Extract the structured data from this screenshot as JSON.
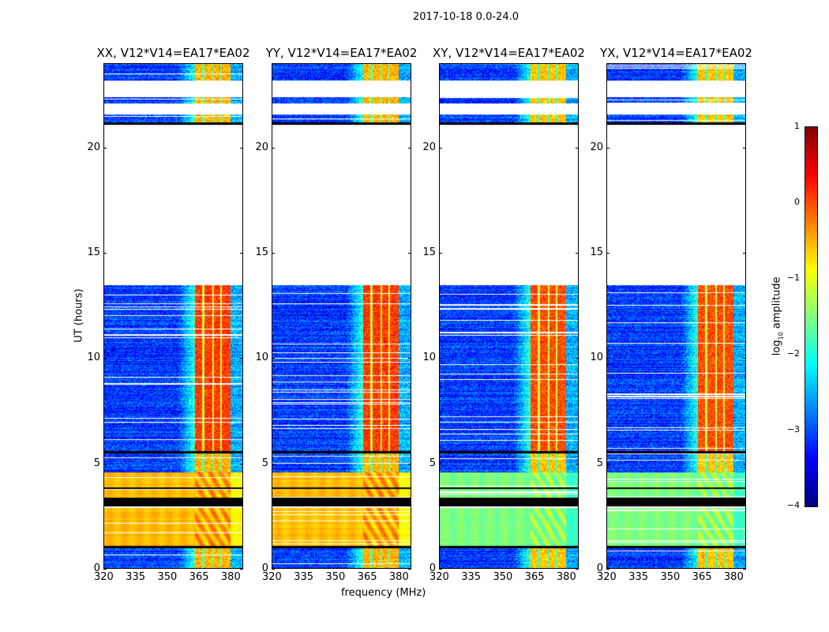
{
  "figure_title": "2017-10-18 0.0-24.0",
  "chart_data": {
    "type": "heatmap",
    "xlabel": "frequency (MHz)",
    "ylabel": "UT (hours)",
    "xlim": [
      320,
      386
    ],
    "ylim": [
      0,
      24
    ],
    "xticks": [
      "320",
      "335",
      "350",
      "365",
      "380"
    ],
    "xtick_values": [
      320,
      335,
      350,
      365,
      380
    ],
    "yticks": [
      "0",
      "5",
      "10",
      "15",
      "20"
    ],
    "ytick_values": [
      0,
      5,
      10,
      15,
      20
    ],
    "panels": [
      {
        "title": "XX, V12*V14=EA17*EA02",
        "bright_level": -0.55
      },
      {
        "title": "YY, V12*V14=EA17*EA02",
        "bright_level": -0.55
      },
      {
        "title": "XY, V12*V14=EA17*EA02",
        "bright_level": -1.5
      },
      {
        "title": "YX, V12*V14=EA17*EA02",
        "bright_level": -1.5
      }
    ],
    "rfi_band_mhz": [
      363,
      380
    ],
    "time_segments_hours": [
      [
        0.0,
        1.0,
        "noise"
      ],
      [
        1.0,
        1.1,
        "flagged"
      ],
      [
        1.1,
        2.9,
        "bright"
      ],
      [
        2.9,
        3.0,
        "white"
      ],
      [
        3.0,
        3.4,
        "flagged"
      ],
      [
        3.4,
        3.8,
        "bright"
      ],
      [
        3.8,
        3.9,
        "flagged"
      ],
      [
        3.9,
        4.6,
        "bright"
      ],
      [
        4.6,
        5.5,
        "noise"
      ],
      [
        5.5,
        5.6,
        "flagged"
      ],
      [
        5.6,
        13.5,
        "noise"
      ],
      [
        13.5,
        21.1,
        "white"
      ],
      [
        21.1,
        21.2,
        "flagged"
      ],
      [
        21.2,
        21.6,
        "noise"
      ],
      [
        21.6,
        22.1,
        "white"
      ],
      [
        22.1,
        22.4,
        "noise"
      ],
      [
        22.4,
        23.2,
        "white"
      ],
      [
        23.2,
        24.0,
        "noise"
      ]
    ],
    "colorbar": {
      "label": "log10 amplitude",
      "label_base": "log",
      "label_sub": "10",
      "label_rest": " amplitude",
      "range": [
        -4,
        1
      ],
      "ticks": [
        "1",
        "0",
        "−1",
        "−2",
        "−3",
        "−4"
      ],
      "tick_values": [
        1,
        0,
        -1,
        -2,
        -3,
        -4
      ],
      "colormap": "jet"
    }
  }
}
